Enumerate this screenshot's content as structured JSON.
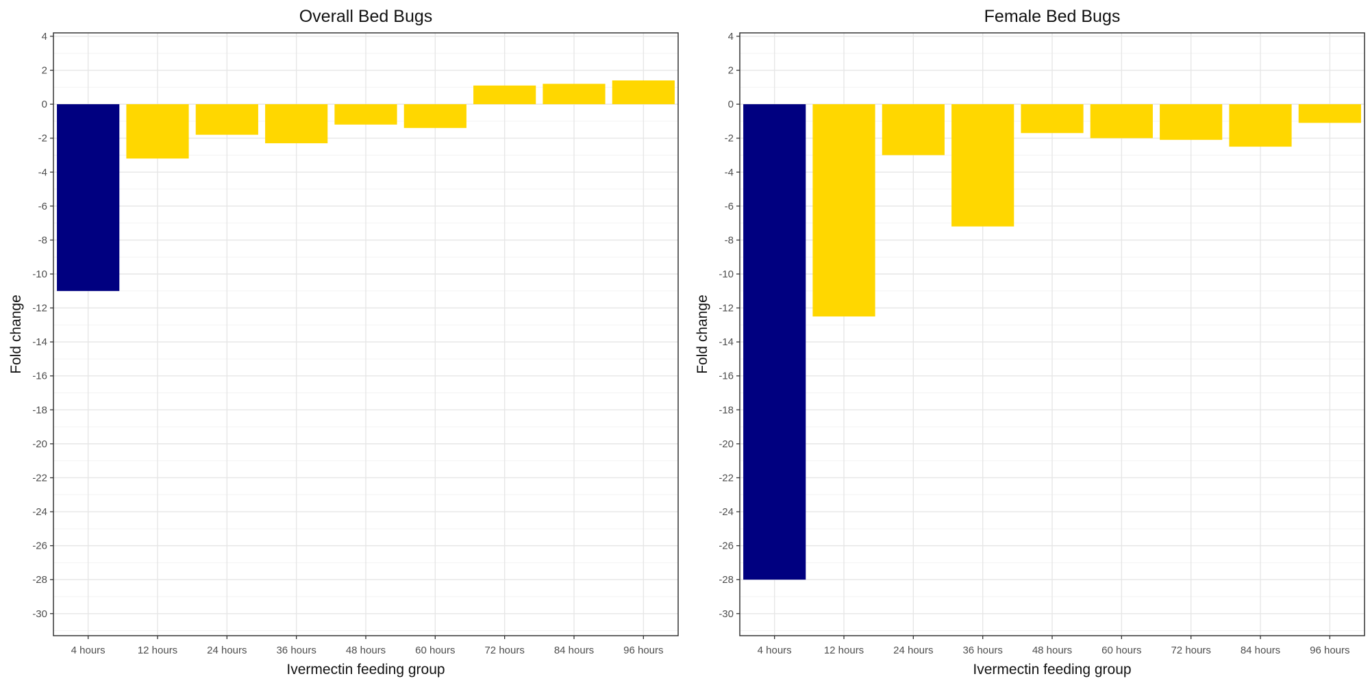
{
  "chart_data": [
    {
      "type": "bar",
      "title": "Overall Bed Bugs",
      "xlabel": "Ivermectin feeding group",
      "ylabel": "Fold change",
      "categories": [
        "4 hours",
        "12 hours",
        "24 hours",
        "36 hours",
        "48 hours",
        "60 hours",
        "72 hours",
        "84 hours",
        "96 hours"
      ],
      "values": [
        -11.0,
        -3.2,
        -1.8,
        -2.3,
        -1.2,
        -1.4,
        1.1,
        1.2,
        1.4
      ],
      "bar_colors": [
        "#000080",
        "#FFD700",
        "#FFD700",
        "#FFD700",
        "#FFD700",
        "#FFD700",
        "#FFD700",
        "#FFD700",
        "#FFD700"
      ],
      "ylim": [
        -31.3,
        4.2
      ],
      "yticks": [
        4,
        2,
        0,
        -2,
        -4,
        -6,
        -8,
        -10,
        -12,
        -14,
        -16,
        -18,
        -20,
        -22,
        -24,
        -26,
        -28,
        -30
      ],
      "grid": true,
      "legend": "none"
    },
    {
      "type": "bar",
      "title": "Female Bed Bugs",
      "xlabel": "Ivermectin feeding group",
      "ylabel": "Fold change",
      "categories": [
        "4 hours",
        "12 hours",
        "24 hours",
        "36 hours",
        "48 hours",
        "60 hours",
        "72 hours",
        "84 hours",
        "96 hours"
      ],
      "values": [
        -28.0,
        -12.5,
        -3.0,
        -7.2,
        -1.7,
        -2.0,
        -2.1,
        -2.5,
        -1.1
      ],
      "bar_colors": [
        "#000080",
        "#FFD700",
        "#FFD700",
        "#FFD700",
        "#FFD700",
        "#FFD700",
        "#FFD700",
        "#FFD700",
        "#FFD700"
      ],
      "ylim": [
        -31.3,
        4.2
      ],
      "yticks": [
        4,
        2,
        0,
        -2,
        -4,
        -6,
        -8,
        -10,
        -12,
        -14,
        -16,
        -18,
        -20,
        -22,
        -24,
        -26,
        -28,
        -30
      ],
      "grid": true,
      "legend": "none"
    }
  ],
  "style": {
    "panel_border": "#333333",
    "grid_major": "#e6e6e6",
    "grid_minor": "#f3f3f3",
    "tick_color": "#4d4d4d"
  }
}
